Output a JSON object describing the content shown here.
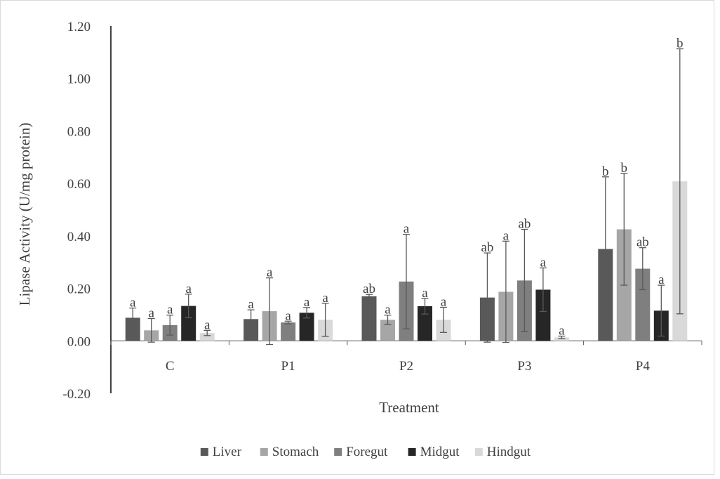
{
  "chart_data": {
    "type": "bar",
    "title": "",
    "xlabel": "Treatment",
    "ylabel": "Lipase Activity (U/mg protein)",
    "ylim": [
      -0.2,
      1.2
    ],
    "yticks": [
      "-0.20",
      "0.00",
      "0.20",
      "0.40",
      "0.60",
      "0.80",
      "1.00",
      "1.20"
    ],
    "grid": false,
    "legend_position": "bottom",
    "categories": [
      "C",
      "P1",
      "P2",
      "P3",
      "P4"
    ],
    "series": [
      {
        "name": "Liver",
        "color": "#595959",
        "values": [
          0.088,
          0.083,
          0.17,
          0.165,
          0.35
        ],
        "errors": [
          0.037,
          0.035,
          0.007,
          0.17,
          0.275
        ],
        "letters": [
          "a",
          "a",
          "ab",
          "ab",
          "b"
        ]
      },
      {
        "name": "Stomach",
        "color": "#a6a6a6",
        "values": [
          0.04,
          0.113,
          0.08,
          0.187,
          0.425
        ],
        "errors": [
          0.045,
          0.127,
          0.018,
          0.193,
          0.213
        ],
        "letters": [
          "a",
          "a",
          "a",
          "a",
          "b"
        ]
      },
      {
        "name": "Foregut",
        "color": "#7f7f7f",
        "values": [
          0.06,
          0.07,
          0.226,
          0.23,
          0.275
        ],
        "errors": [
          0.038,
          0.005,
          0.18,
          0.195,
          0.08
        ],
        "letters": [
          "a",
          "a",
          "a",
          "ab",
          "ab"
        ]
      },
      {
        "name": "Midgut",
        "color": "#262626",
        "values": [
          0.133,
          0.107,
          0.132,
          0.195,
          0.115
        ],
        "errors": [
          0.045,
          0.02,
          0.03,
          0.083,
          0.097
        ],
        "letters": [
          "a",
          "a",
          "a",
          "a",
          "a"
        ]
      },
      {
        "name": "Hindgut",
        "color": "#d9d9d9",
        "values": [
          0.03,
          0.08,
          0.08,
          0.013,
          0.608
        ],
        "errors": [
          0.01,
          0.063,
          0.048,
          0.005,
          0.505
        ],
        "letters": [
          "a",
          "a",
          "a",
          "a",
          "b"
        ]
      }
    ]
  }
}
